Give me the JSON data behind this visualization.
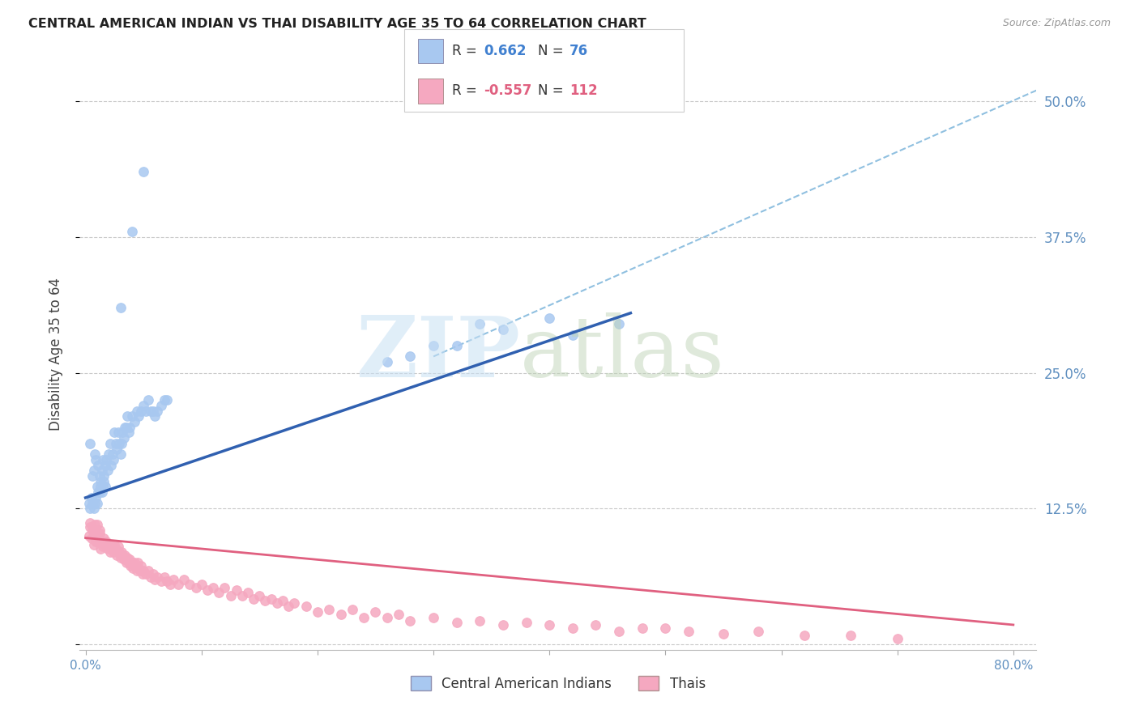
{
  "title": "CENTRAL AMERICAN INDIAN VS THAI DISABILITY AGE 35 TO 64 CORRELATION CHART",
  "source": "Source: ZipAtlas.com",
  "ylabel": "Disability Age 35 to 64",
  "xlim": [
    -0.005,
    0.82
  ],
  "ylim": [
    -0.005,
    0.54
  ],
  "blue_R": 0.662,
  "blue_N": 76,
  "pink_R": -0.557,
  "pink_N": 112,
  "blue_scatter_color": "#A8C8F0",
  "pink_scatter_color": "#F5A8C0",
  "blue_line_color": "#3060B0",
  "pink_line_color": "#E06080",
  "dashed_line_color": "#90C0E0",
  "legend_label_blue": "Central American Indians",
  "legend_label_pink": "Thais",
  "grid_color": "#C8C8C8",
  "background_color": "#FFFFFF",
  "x_ticks": [
    0.0,
    0.1,
    0.2,
    0.3,
    0.4,
    0.5,
    0.6,
    0.7,
    0.8
  ],
  "x_tick_labels": [
    "0.0%",
    "",
    "",
    "",
    "",
    "",
    "",
    "",
    "80.0%"
  ],
  "y_ticks": [
    0.0,
    0.125,
    0.25,
    0.375,
    0.5
  ],
  "y_tick_labels_right": [
    "",
    "12.5%",
    "25.0%",
    "37.5%",
    "50.0%"
  ],
  "blue_scatter_x": [
    0.004,
    0.006,
    0.007,
    0.008,
    0.009,
    0.01,
    0.011,
    0.012,
    0.013,
    0.014,
    0.015,
    0.016,
    0.017,
    0.018,
    0.019,
    0.02,
    0.021,
    0.022,
    0.023,
    0.024,
    0.025,
    0.026,
    0.027,
    0.028,
    0.029,
    0.03,
    0.031,
    0.032,
    0.033,
    0.034,
    0.035,
    0.036,
    0.037,
    0.038,
    0.04,
    0.042,
    0.044,
    0.046,
    0.048,
    0.05,
    0.052,
    0.054,
    0.056,
    0.058,
    0.06,
    0.062,
    0.065,
    0.068,
    0.07,
    0.003,
    0.004,
    0.005,
    0.006,
    0.007,
    0.008,
    0.009,
    0.01,
    0.011,
    0.012,
    0.013,
    0.014,
    0.015,
    0.016,
    0.017,
    0.03,
    0.04,
    0.05,
    0.26,
    0.28,
    0.3,
    0.32,
    0.34,
    0.36,
    0.4,
    0.42,
    0.46
  ],
  "blue_scatter_y": [
    0.185,
    0.155,
    0.16,
    0.175,
    0.17,
    0.145,
    0.165,
    0.155,
    0.15,
    0.16,
    0.17,
    0.155,
    0.165,
    0.17,
    0.16,
    0.175,
    0.185,
    0.165,
    0.175,
    0.17,
    0.195,
    0.185,
    0.18,
    0.195,
    0.185,
    0.175,
    0.185,
    0.195,
    0.19,
    0.2,
    0.2,
    0.21,
    0.195,
    0.2,
    0.21,
    0.205,
    0.215,
    0.21,
    0.215,
    0.22,
    0.215,
    0.225,
    0.215,
    0.215,
    0.21,
    0.215,
    0.22,
    0.225,
    0.225,
    0.13,
    0.125,
    0.135,
    0.13,
    0.125,
    0.13,
    0.135,
    0.13,
    0.14,
    0.14,
    0.145,
    0.14,
    0.145,
    0.15,
    0.145,
    0.31,
    0.38,
    0.435,
    0.26,
    0.265,
    0.275,
    0.275,
    0.295,
    0.29,
    0.3,
    0.285,
    0.295
  ],
  "pink_scatter_x": [
    0.003,
    0.004,
    0.005,
    0.006,
    0.007,
    0.008,
    0.009,
    0.01,
    0.011,
    0.012,
    0.013,
    0.014,
    0.015,
    0.016,
    0.017,
    0.018,
    0.019,
    0.02,
    0.021,
    0.022,
    0.023,
    0.024,
    0.025,
    0.026,
    0.027,
    0.028,
    0.029,
    0.03,
    0.031,
    0.032,
    0.033,
    0.034,
    0.035,
    0.036,
    0.037,
    0.038,
    0.039,
    0.04,
    0.041,
    0.042,
    0.043,
    0.044,
    0.045,
    0.046,
    0.047,
    0.048,
    0.049,
    0.05,
    0.052,
    0.054,
    0.056,
    0.058,
    0.06,
    0.062,
    0.065,
    0.068,
    0.07,
    0.073,
    0.076,
    0.08,
    0.085,
    0.09,
    0.095,
    0.1,
    0.105,
    0.11,
    0.115,
    0.12,
    0.125,
    0.13,
    0.135,
    0.14,
    0.145,
    0.15,
    0.155,
    0.16,
    0.165,
    0.17,
    0.175,
    0.18,
    0.19,
    0.2,
    0.21,
    0.22,
    0.23,
    0.24,
    0.25,
    0.26,
    0.27,
    0.28,
    0.3,
    0.32,
    0.34,
    0.36,
    0.38,
    0.4,
    0.42,
    0.44,
    0.46,
    0.48,
    0.5,
    0.52,
    0.55,
    0.58,
    0.62,
    0.66,
    0.7,
    0.004,
    0.006,
    0.008,
    0.01,
    0.012
  ],
  "pink_scatter_y": [
    0.1,
    0.108,
    0.098,
    0.105,
    0.092,
    0.11,
    0.095,
    0.1,
    0.095,
    0.102,
    0.088,
    0.095,
    0.09,
    0.098,
    0.092,
    0.095,
    0.088,
    0.092,
    0.085,
    0.088,
    0.09,
    0.085,
    0.092,
    0.088,
    0.082,
    0.09,
    0.085,
    0.08,
    0.085,
    0.082,
    0.078,
    0.082,
    0.075,
    0.08,
    0.075,
    0.078,
    0.072,
    0.075,
    0.07,
    0.075,
    0.072,
    0.068,
    0.075,
    0.07,
    0.068,
    0.072,
    0.065,
    0.068,
    0.065,
    0.068,
    0.062,
    0.065,
    0.06,
    0.062,
    0.058,
    0.062,
    0.058,
    0.055,
    0.06,
    0.055,
    0.06,
    0.055,
    0.052,
    0.055,
    0.05,
    0.052,
    0.048,
    0.052,
    0.045,
    0.05,
    0.045,
    0.048,
    0.042,
    0.045,
    0.04,
    0.042,
    0.038,
    0.04,
    0.035,
    0.038,
    0.035,
    0.03,
    0.032,
    0.028,
    0.032,
    0.025,
    0.03,
    0.025,
    0.028,
    0.022,
    0.025,
    0.02,
    0.022,
    0.018,
    0.02,
    0.018,
    0.015,
    0.018,
    0.012,
    0.015,
    0.015,
    0.012,
    0.01,
    0.012,
    0.008,
    0.008,
    0.005,
    0.112,
    0.108,
    0.105,
    0.11,
    0.105
  ],
  "blue_trendline_x": [
    0.0,
    0.47
  ],
  "blue_trendline_y": [
    0.135,
    0.305
  ],
  "pink_trendline_x": [
    0.0,
    0.8
  ],
  "pink_trendline_y": [
    0.098,
    0.018
  ],
  "dashed_line_x": [
    0.3,
    0.82
  ],
  "dashed_line_y": [
    0.265,
    0.51
  ],
  "legend_R_color": "#4080D0",
  "legend_pink_R_color": "#E06080",
  "legend_N_color": "#4080D0",
  "legend_pink_N_color": "#E06080"
}
